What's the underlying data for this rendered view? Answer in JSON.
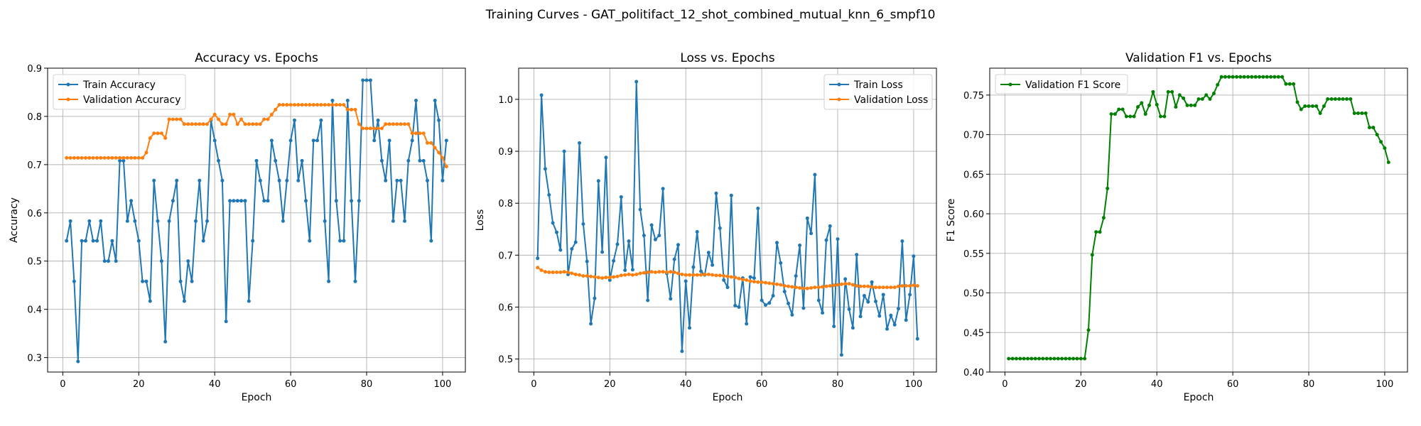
{
  "figure": {
    "suptitle": "Training Curves - GAT_politifact_12_shot_combined_mutual_knn_6_smpf10"
  },
  "chart_data": [
    {
      "type": "line",
      "title": "Accuracy vs. Epochs",
      "xlabel": "Epoch",
      "ylabel": "Accuracy",
      "xlim": [
        -4,
        106
      ],
      "ylim": [
        0.27,
        0.9
      ],
      "xticks": [
        0,
        20,
        40,
        60,
        80,
        100
      ],
      "yticks": [
        0.3,
        0.4,
        0.5,
        0.6,
        0.7,
        0.8,
        0.9
      ],
      "grid": true,
      "legend": "top-left",
      "x": [
        1,
        2,
        3,
        4,
        5,
        6,
        7,
        8,
        9,
        10,
        11,
        12,
        13,
        14,
        15,
        16,
        17,
        18,
        19,
        20,
        21,
        22,
        23,
        24,
        25,
        26,
        27,
        28,
        29,
        30,
        31,
        32,
        33,
        34,
        35,
        36,
        37,
        38,
        39,
        40,
        41,
        42,
        43,
        44,
        45,
        46,
        47,
        48,
        49,
        50,
        51,
        52,
        53,
        54,
        55,
        56,
        57,
        58,
        59,
        60,
        61,
        62,
        63,
        64,
        65,
        66,
        67,
        68,
        69,
        70,
        71,
        72,
        73,
        74,
        75,
        76,
        77,
        78,
        79,
        80,
        81,
        82,
        83,
        84,
        85,
        86,
        87,
        88,
        89,
        90,
        91,
        92,
        93,
        94,
        95,
        96,
        97,
        98,
        99,
        100,
        101
      ],
      "series": [
        {
          "name": "Train Accuracy",
          "color": "#1f77b4",
          "values": [
            0.542,
            0.583,
            0.458,
            0.292,
            0.542,
            0.542,
            0.583,
            0.542,
            0.542,
            0.583,
            0.5,
            0.5,
            0.542,
            0.5,
            0.708,
            0.708,
            0.583,
            0.625,
            0.583,
            0.542,
            0.458,
            0.458,
            0.417,
            0.667,
            0.583,
            0.5,
            0.333,
            0.583,
            0.625,
            0.667,
            0.458,
            0.417,
            0.5,
            0.458,
            0.583,
            0.667,
            0.542,
            0.583,
            0.792,
            0.75,
            0.708,
            0.667,
            0.375,
            0.625,
            0.625,
            0.625,
            0.625,
            0.625,
            0.417,
            0.542,
            0.708,
            0.667,
            0.625,
            0.625,
            0.75,
            0.708,
            0.667,
            0.583,
            0.667,
            0.75,
            0.792,
            0.667,
            0.708,
            0.625,
            0.542,
            0.75,
            0.75,
            0.792,
            0.583,
            0.458,
            0.833,
            0.625,
            0.542,
            0.542,
            0.833,
            0.625,
            0.458,
            0.625,
            0.875,
            0.875,
            0.875,
            0.75,
            0.792,
            0.708,
            0.667,
            0.75,
            0.583,
            0.667,
            0.667,
            0.583,
            0.708,
            0.75,
            0.833,
            0.708,
            0.708,
            0.667,
            0.542,
            0.833,
            0.792,
            0.667,
            0.75
          ]
        },
        {
          "name": "Validation Accuracy",
          "color": "#ff7f0e",
          "values": [
            0.714,
            0.714,
            0.714,
            0.714,
            0.714,
            0.714,
            0.714,
            0.714,
            0.714,
            0.714,
            0.714,
            0.714,
            0.714,
            0.714,
            0.714,
            0.714,
            0.714,
            0.714,
            0.714,
            0.714,
            0.714,
            0.725,
            0.755,
            0.765,
            0.765,
            0.765,
            0.755,
            0.794,
            0.794,
            0.794,
            0.794,
            0.784,
            0.784,
            0.784,
            0.784,
            0.784,
            0.784,
            0.784,
            0.794,
            0.804,
            0.794,
            0.784,
            0.784,
            0.804,
            0.804,
            0.784,
            0.794,
            0.784,
            0.784,
            0.784,
            0.784,
            0.784,
            0.794,
            0.794,
            0.804,
            0.814,
            0.824,
            0.824,
            0.824,
            0.824,
            0.824,
            0.824,
            0.824,
            0.824,
            0.824,
            0.824,
            0.824,
            0.824,
            0.824,
            0.824,
            0.824,
            0.824,
            0.824,
            0.824,
            0.814,
            0.814,
            0.814,
            0.784,
            0.775,
            0.775,
            0.775,
            0.775,
            0.775,
            0.775,
            0.784,
            0.784,
            0.784,
            0.784,
            0.784,
            0.784,
            0.784,
            0.765,
            0.765,
            0.765,
            0.765,
            0.745,
            0.745,
            0.735,
            0.725,
            0.714,
            0.696
          ]
        }
      ]
    },
    {
      "type": "line",
      "title": "Loss vs. Epochs",
      "xlabel": "Epoch",
      "ylabel": "Loss",
      "xlim": [
        -4,
        106
      ],
      "ylim": [
        0.475,
        1.06
      ],
      "xticks": [
        0,
        20,
        40,
        60,
        80,
        100
      ],
      "yticks": [
        0.5,
        0.6,
        0.7,
        0.8,
        0.9,
        1.0
      ],
      "grid": true,
      "legend": "top-right",
      "x": [
        1,
        2,
        3,
        4,
        5,
        6,
        7,
        8,
        9,
        10,
        11,
        12,
        13,
        14,
        15,
        16,
        17,
        18,
        19,
        20,
        21,
        22,
        23,
        24,
        25,
        26,
        27,
        28,
        29,
        30,
        31,
        32,
        33,
        34,
        35,
        36,
        37,
        38,
        39,
        40,
        41,
        42,
        43,
        44,
        45,
        46,
        47,
        48,
        49,
        50,
        51,
        52,
        53,
        54,
        55,
        56,
        57,
        58,
        59,
        60,
        61,
        62,
        63,
        64,
        65,
        66,
        67,
        68,
        69,
        70,
        71,
        72,
        73,
        74,
        75,
        76,
        77,
        78,
        79,
        80,
        81,
        82,
        83,
        84,
        85,
        86,
        87,
        88,
        89,
        90,
        91,
        92,
        93,
        94,
        95,
        96,
        97,
        98,
        99,
        100,
        101
      ],
      "series": [
        {
          "name": "Train Loss",
          "color": "#1f77b4",
          "values": [
            0.694,
            1.008,
            0.866,
            0.816,
            0.762,
            0.744,
            0.71,
            0.9,
            0.663,
            0.712,
            0.725,
            0.916,
            0.76,
            0.688,
            0.568,
            0.617,
            0.843,
            0.706,
            0.888,
            0.652,
            0.689,
            0.721,
            0.812,
            0.671,
            0.727,
            0.672,
            1.034,
            0.788,
            0.738,
            0.613,
            0.758,
            0.73,
            0.738,
            0.828,
            0.665,
            0.616,
            0.692,
            0.72,
            0.515,
            0.65,
            0.56,
            0.677,
            0.745,
            0.669,
            0.662,
            0.705,
            0.681,
            0.819,
            0.752,
            0.652,
            0.638,
            0.815,
            0.603,
            0.6,
            0.656,
            0.568,
            0.658,
            0.656,
            0.79,
            0.613,
            0.604,
            0.608,
            0.622,
            0.724,
            0.685,
            0.63,
            0.607,
            0.585,
            0.66,
            0.719,
            0.598,
            0.771,
            0.742,
            0.855,
            0.613,
            0.589,
            0.729,
            0.756,
            0.563,
            0.731,
            0.508,
            0.654,
            0.596,
            0.56,
            0.701,
            0.582,
            0.622,
            0.61,
            0.648,
            0.611,
            0.583,
            0.624,
            0.558,
            0.584,
            0.566,
            0.597,
            0.727,
            0.575,
            0.624,
            0.698,
            0.539
          ]
        },
        {
          "name": "Validation Loss",
          "color": "#ff7f0e",
          "values": [
            0.676,
            0.671,
            0.668,
            0.667,
            0.667,
            0.667,
            0.667,
            0.668,
            0.667,
            0.665,
            0.663,
            0.662,
            0.66,
            0.66,
            0.659,
            0.658,
            0.657,
            0.656,
            0.657,
            0.657,
            0.658,
            0.659,
            0.661,
            0.662,
            0.663,
            0.662,
            0.663,
            0.665,
            0.666,
            0.667,
            0.668,
            0.667,
            0.668,
            0.668,
            0.667,
            0.668,
            0.667,
            0.665,
            0.663,
            0.662,
            0.662,
            0.662,
            0.662,
            0.662,
            0.663,
            0.663,
            0.662,
            0.661,
            0.661,
            0.66,
            0.659,
            0.658,
            0.657,
            0.655,
            0.653,
            0.652,
            0.65,
            0.649,
            0.648,
            0.648,
            0.647,
            0.646,
            0.645,
            0.644,
            0.643,
            0.641,
            0.64,
            0.639,
            0.638,
            0.637,
            0.636,
            0.636,
            0.637,
            0.638,
            0.638,
            0.639,
            0.64,
            0.641,
            0.642,
            0.643,
            0.644,
            0.645,
            0.645,
            0.643,
            0.641,
            0.64,
            0.64,
            0.64,
            0.639,
            0.638,
            0.638,
            0.638,
            0.638,
            0.638,
            0.638,
            0.64,
            0.641,
            0.641,
            0.641,
            0.642,
            0.641
          ]
        }
      ]
    },
    {
      "type": "line",
      "title": "Validation F1 vs. Epochs",
      "xlabel": "Epoch",
      "ylabel": "F1 Score",
      "xlim": [
        -4,
        106
      ],
      "ylim": [
        0.4,
        0.784
      ],
      "xticks": [
        0,
        20,
        40,
        60,
        80,
        100
      ],
      "yticks": [
        0.4,
        0.45,
        0.5,
        0.55,
        0.6,
        0.65,
        0.7,
        0.75
      ],
      "ytick_format": "2dp",
      "grid": true,
      "legend": "top-left",
      "x": [
        1,
        2,
        3,
        4,
        5,
        6,
        7,
        8,
        9,
        10,
        11,
        12,
        13,
        14,
        15,
        16,
        17,
        18,
        19,
        20,
        21,
        22,
        23,
        24,
        25,
        26,
        27,
        28,
        29,
        30,
        31,
        32,
        33,
        34,
        35,
        36,
        37,
        38,
        39,
        40,
        41,
        42,
        43,
        44,
        45,
        46,
        47,
        48,
        49,
        50,
        51,
        52,
        53,
        54,
        55,
        56,
        57,
        58,
        59,
        60,
        61,
        62,
        63,
        64,
        65,
        66,
        67,
        68,
        69,
        70,
        71,
        72,
        73,
        74,
        75,
        76,
        77,
        78,
        79,
        80,
        81,
        82,
        83,
        84,
        85,
        86,
        87,
        88,
        89,
        90,
        91,
        92,
        93,
        94,
        95,
        96,
        97,
        98,
        99,
        100,
        101
      ],
      "series": [
        {
          "name": "Validation F1 Score",
          "color": "#008000",
          "values": [
            0.417,
            0.417,
            0.417,
            0.417,
            0.417,
            0.417,
            0.417,
            0.417,
            0.417,
            0.417,
            0.417,
            0.417,
            0.417,
            0.417,
            0.417,
            0.417,
            0.417,
            0.417,
            0.417,
            0.417,
            0.417,
            0.453,
            0.548,
            0.577,
            0.577,
            0.595,
            0.632,
            0.726,
            0.726,
            0.732,
            0.732,
            0.723,
            0.723,
            0.723,
            0.735,
            0.74,
            0.726,
            0.737,
            0.754,
            0.738,
            0.723,
            0.723,
            0.754,
            0.754,
            0.735,
            0.75,
            0.746,
            0.737,
            0.737,
            0.737,
            0.745,
            0.745,
            0.75,
            0.745,
            0.752,
            0.763,
            0.773,
            0.773,
            0.773,
            0.773,
            0.773,
            0.773,
            0.773,
            0.773,
            0.773,
            0.773,
            0.773,
            0.773,
            0.773,
            0.773,
            0.773,
            0.773,
            0.773,
            0.764,
            0.764,
            0.764,
            0.741,
            0.732,
            0.736,
            0.736,
            0.736,
            0.736,
            0.727,
            0.736,
            0.745,
            0.745,
            0.745,
            0.745,
            0.745,
            0.745,
            0.745,
            0.727,
            0.727,
            0.727,
            0.727,
            0.709,
            0.709,
            0.7,
            0.691,
            0.683,
            0.665
          ]
        }
      ]
    }
  ]
}
